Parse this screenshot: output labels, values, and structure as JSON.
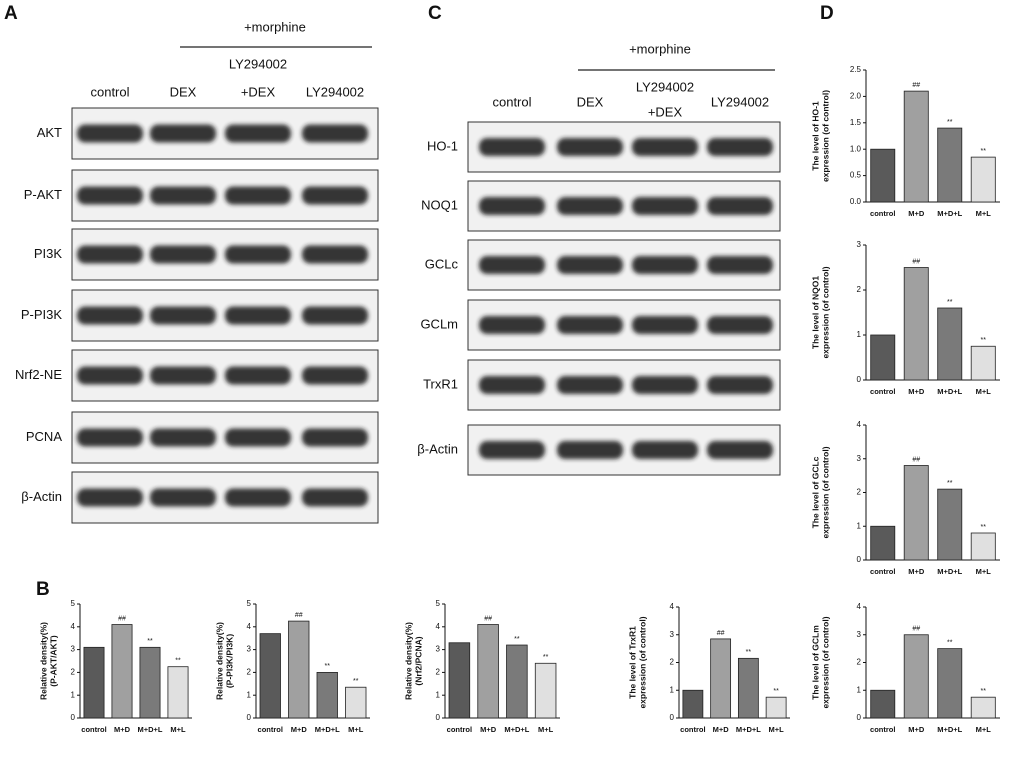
{
  "figure": {
    "panel_labels": [
      "A",
      "B",
      "C",
      "D"
    ]
  },
  "blots": [
    {
      "header": "+morphine",
      "columns": [
        [
          "control"
        ],
        [
          "DEX"
        ],
        [
          "LY294002",
          "+DEX"
        ],
        [
          "LY294002"
        ]
      ],
      "rows": [
        "AKT",
        "P-AKT",
        "PI3K",
        "P-PI3K",
        "Nrf2-NE",
        "PCNA",
        "β-Actin"
      ]
    },
    {
      "header": "+morphine",
      "columns": [
        [
          "control"
        ],
        [
          "DEX"
        ],
        [
          "LY294002",
          "+DEX"
        ],
        [
          "LY294002"
        ]
      ],
      "rows": [
        "HO-1",
        "NOQ1",
        "GCLc",
        "GCLm",
        "TrxR1",
        "β-Actin"
      ]
    }
  ],
  "chart_data": [
    {
      "type": "bar",
      "ylabel": [
        "Relative density(%)",
        "(P-AKT/AKT)"
      ],
      "categories": [
        "control",
        "M+D",
        "M+D+L",
        "M+L"
      ],
      "values": [
        3.1,
        4.1,
        3.1,
        2.25
      ],
      "markers": [
        null,
        "##",
        "**",
        "**"
      ],
      "colors": [
        "#5a5a5a",
        "#a0a0a0",
        "#7a7a7a",
        "#e0e0e0"
      ],
      "ylim": [
        0,
        5
      ],
      "yticks": [
        0,
        1,
        2,
        3,
        4,
        5
      ]
    },
    {
      "type": "bar",
      "ylabel": [
        "Relative density(%)",
        "(P-PI3K/PI3K)"
      ],
      "categories": [
        "control",
        "M+D",
        "M+D+L",
        "M+L"
      ],
      "values": [
        3.7,
        4.25,
        2.0,
        1.35
      ],
      "markers": [
        null,
        "##",
        "**",
        "**"
      ],
      "colors": [
        "#5a5a5a",
        "#a0a0a0",
        "#7a7a7a",
        "#e0e0e0"
      ],
      "ylim": [
        0,
        5
      ],
      "yticks": [
        0,
        1,
        2,
        3,
        4,
        5
      ]
    },
    {
      "type": "bar",
      "ylabel": [
        "Relative density(%)",
        "(Nrf2/PCNA)"
      ],
      "categories": [
        "control",
        "M+D",
        "M+D+L",
        "M+L"
      ],
      "values": [
        3.3,
        4.1,
        3.2,
        2.4
      ],
      "markers": [
        null,
        "##",
        "**",
        "**"
      ],
      "colors": [
        "#5a5a5a",
        "#a0a0a0",
        "#7a7a7a",
        "#e0e0e0"
      ],
      "ylim": [
        0,
        5
      ],
      "yticks": [
        0,
        1,
        2,
        3,
        4,
        5
      ]
    },
    {
      "type": "bar",
      "ylabel": [
        "The level of TrxR1",
        "expression (of control)"
      ],
      "categories": [
        "control",
        "M+D",
        "M+D+L",
        "M+L"
      ],
      "values": [
        1.0,
        2.85,
        2.15,
        0.75
      ],
      "markers": [
        null,
        "##",
        "**",
        "**"
      ],
      "colors": [
        "#5a5a5a",
        "#a0a0a0",
        "#7a7a7a",
        "#e0e0e0"
      ],
      "ylim": [
        0,
        4
      ],
      "yticks": [
        0,
        1,
        2,
        3,
        4
      ]
    },
    {
      "type": "bar",
      "ylabel": [
        "The level of HO-1",
        "expression (of control)"
      ],
      "categories": [
        "control",
        "M+D",
        "M+D+L",
        "M+L"
      ],
      "values": [
        1.0,
        2.1,
        1.4,
        0.85
      ],
      "markers": [
        null,
        "##",
        "**",
        "**"
      ],
      "colors": [
        "#5a5a5a",
        "#a0a0a0",
        "#7a7a7a",
        "#e0e0e0"
      ],
      "ylim": [
        0,
        2.5
      ],
      "yticks": [
        {
          "value": 0,
          "label": "0.0"
        },
        0.5,
        {
          "value": 1,
          "label": "1.0"
        },
        1.5,
        {
          "value": 2,
          "label": "2.0"
        },
        2.5
      ]
    },
    {
      "type": "bar",
      "ylabel": [
        "The level of NQO1",
        "expression (of control)"
      ],
      "categories": [
        "control",
        "M+D",
        "M+D+L",
        "M+L"
      ],
      "values": [
        1.0,
        2.5,
        1.6,
        0.75
      ],
      "markers": [
        null,
        "##",
        "**",
        "**"
      ],
      "colors": [
        "#5a5a5a",
        "#a0a0a0",
        "#7a7a7a",
        "#e0e0e0"
      ],
      "ylim": [
        0,
        3
      ],
      "yticks": [
        0,
        1,
        2,
        3
      ]
    },
    {
      "type": "bar",
      "ylabel": [
        "The level of GCLc",
        "expression (of control)"
      ],
      "categories": [
        "control",
        "M+D",
        "M+D+L",
        "M+L"
      ],
      "values": [
        1.0,
        2.8,
        2.1,
        0.8
      ],
      "markers": [
        null,
        "##",
        "**",
        "**"
      ],
      "colors": [
        "#5a5a5a",
        "#a0a0a0",
        "#7a7a7a",
        "#e0e0e0"
      ],
      "ylim": [
        0,
        4
      ],
      "yticks": [
        0,
        1,
        2,
        3,
        4
      ]
    },
    {
      "type": "bar",
      "ylabel": [
        "The level of GCLm",
        "expression (of control)"
      ],
      "categories": [
        "control",
        "M+D",
        "M+D+L",
        "M+L"
      ],
      "values": [
        1.0,
        3.0,
        2.5,
        0.75
      ],
      "markers": [
        null,
        "##",
        "**",
        "**"
      ],
      "colors": [
        "#5a5a5a",
        "#a0a0a0",
        "#7a7a7a",
        "#e0e0e0"
      ],
      "ylim": [
        0,
        4
      ],
      "yticks": [
        0,
        1,
        2,
        3,
        4
      ]
    }
  ]
}
